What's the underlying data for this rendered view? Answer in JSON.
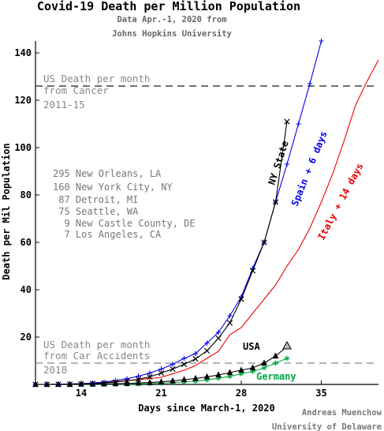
{
  "header": {
    "title": "Covid-19 Death per Million Population",
    "subtitle_1": "Data Apr.-1, 2020 from",
    "subtitle_2": "Johns Hopkins University"
  },
  "credit": {
    "line_1": "Andreas Muenchow",
    "line_2": "University of Delaware"
  },
  "reference_lines": {
    "cancer": {
      "label_1": "US Death per month",
      "label_2": "from Cancer",
      "label_3": "2011-15",
      "value": 126
    },
    "car": {
      "label_1": "US Death per month",
      "label_2": "from Car Accidents",
      "label_3": "2018",
      "value": 9
    }
  },
  "cities": [
    "295 New Orleans, LA",
    "160 New York City, NY",
    " 87 Detroit, MI",
    " 75 Seattle, WA",
    "  9 New Castle County, DE",
    "  7 Los Angeles, CA"
  ],
  "colors": {
    "black": "#000000",
    "spain": "#0000ee",
    "italy": "#ee0000",
    "germany": "#00aa44",
    "reference": "#555555",
    "annotation": "#888888"
  },
  "chart_data": {
    "type": "line",
    "title": "Covid-19 Death per Million Population",
    "xlabel": "Days since March-1, 2020",
    "ylabel": "Death per Mil Population",
    "xlim": [
      10,
      40
    ],
    "ylim": [
      0,
      145
    ],
    "xticks": [
      14,
      21,
      28,
      35
    ],
    "yticks": [
      20,
      40,
      60,
      80,
      100,
      120,
      140
    ],
    "grid": false,
    "legend": "inline labels",
    "series": [
      {
        "name": "Spain + 6 days",
        "color": "#0000ee",
        "marker": "plus",
        "x": [
          10,
          11,
          12,
          13,
          14,
          15,
          16,
          17,
          18,
          19,
          20,
          21,
          22,
          23,
          24,
          25,
          26,
          27,
          28,
          29,
          30,
          31,
          32,
          33,
          34,
          35
        ],
        "y": [
          0,
          0,
          0.1,
          0.2,
          0.3,
          0.6,
          1,
          1.6,
          2.4,
          3.5,
          4.8,
          6.5,
          8.5,
          11,
          13,
          17.5,
          22,
          29,
          37,
          49,
          60,
          77,
          93,
          110,
          127,
          145
        ]
      },
      {
        "name": "Italy + 14 days",
        "color": "#ee0000",
        "marker": "none",
        "x": [
          10,
          11,
          12,
          13,
          14,
          15,
          16,
          17,
          18,
          19,
          20,
          21,
          22,
          23,
          24,
          25,
          26,
          27,
          28,
          29,
          30,
          31,
          32,
          33,
          34,
          35,
          36,
          37,
          38,
          39,
          40
        ],
        "y": [
          0,
          0,
          0,
          0.2,
          0.3,
          0.5,
          0.8,
          1.2,
          1.6,
          2,
          2.5,
          3,
          4.5,
          6,
          8,
          11,
          14,
          21,
          24,
          30,
          36,
          42,
          50,
          57,
          66,
          77,
          89,
          103,
          118,
          128,
          137
        ]
      },
      {
        "name": "NY State",
        "color": "#000000",
        "marker": "x",
        "x": [
          10,
          11,
          12,
          13,
          14,
          15,
          16,
          17,
          18,
          19,
          20,
          21,
          22,
          23,
          24,
          25,
          26,
          27,
          28,
          29,
          30,
          31,
          32
        ],
        "y": [
          0,
          0,
          0.1,
          0.1,
          0.2,
          0.4,
          0.6,
          1,
          1.5,
          2.2,
          3.2,
          4.8,
          6.5,
          8.5,
          10.8,
          14.2,
          19.5,
          26,
          36,
          48,
          60,
          77,
          111
        ]
      },
      {
        "name": "USA",
        "color": "#000000",
        "marker": "triangle",
        "x": [
          10,
          11,
          12,
          13,
          14,
          15,
          16,
          17,
          18,
          19,
          20,
          21,
          22,
          23,
          24,
          25,
          26,
          27,
          28,
          29,
          30,
          31,
          32
        ],
        "y": [
          0,
          0,
          0,
          0,
          0.1,
          0.1,
          0.2,
          0.3,
          0.4,
          0.6,
          0.8,
          1.1,
          1.5,
          2,
          2.5,
          3.2,
          4,
          5,
          6,
          7,
          9,
          12,
          16
        ]
      },
      {
        "name": "Germany",
        "color": "#00aa44",
        "marker": "star",
        "x": [
          10,
          11,
          12,
          13,
          14,
          15,
          16,
          17,
          18,
          19,
          20,
          21,
          22,
          23,
          24,
          25,
          26,
          27,
          28,
          29,
          30,
          31,
          32
        ],
        "y": [
          0,
          0,
          0,
          0,
          0,
          0,
          0,
          0.1,
          0.1,
          0.2,
          0.3,
          0.5,
          0.8,
          1,
          1.4,
          1.9,
          2.6,
          3.4,
          4.5,
          5.5,
          7,
          9,
          11
        ]
      }
    ]
  }
}
